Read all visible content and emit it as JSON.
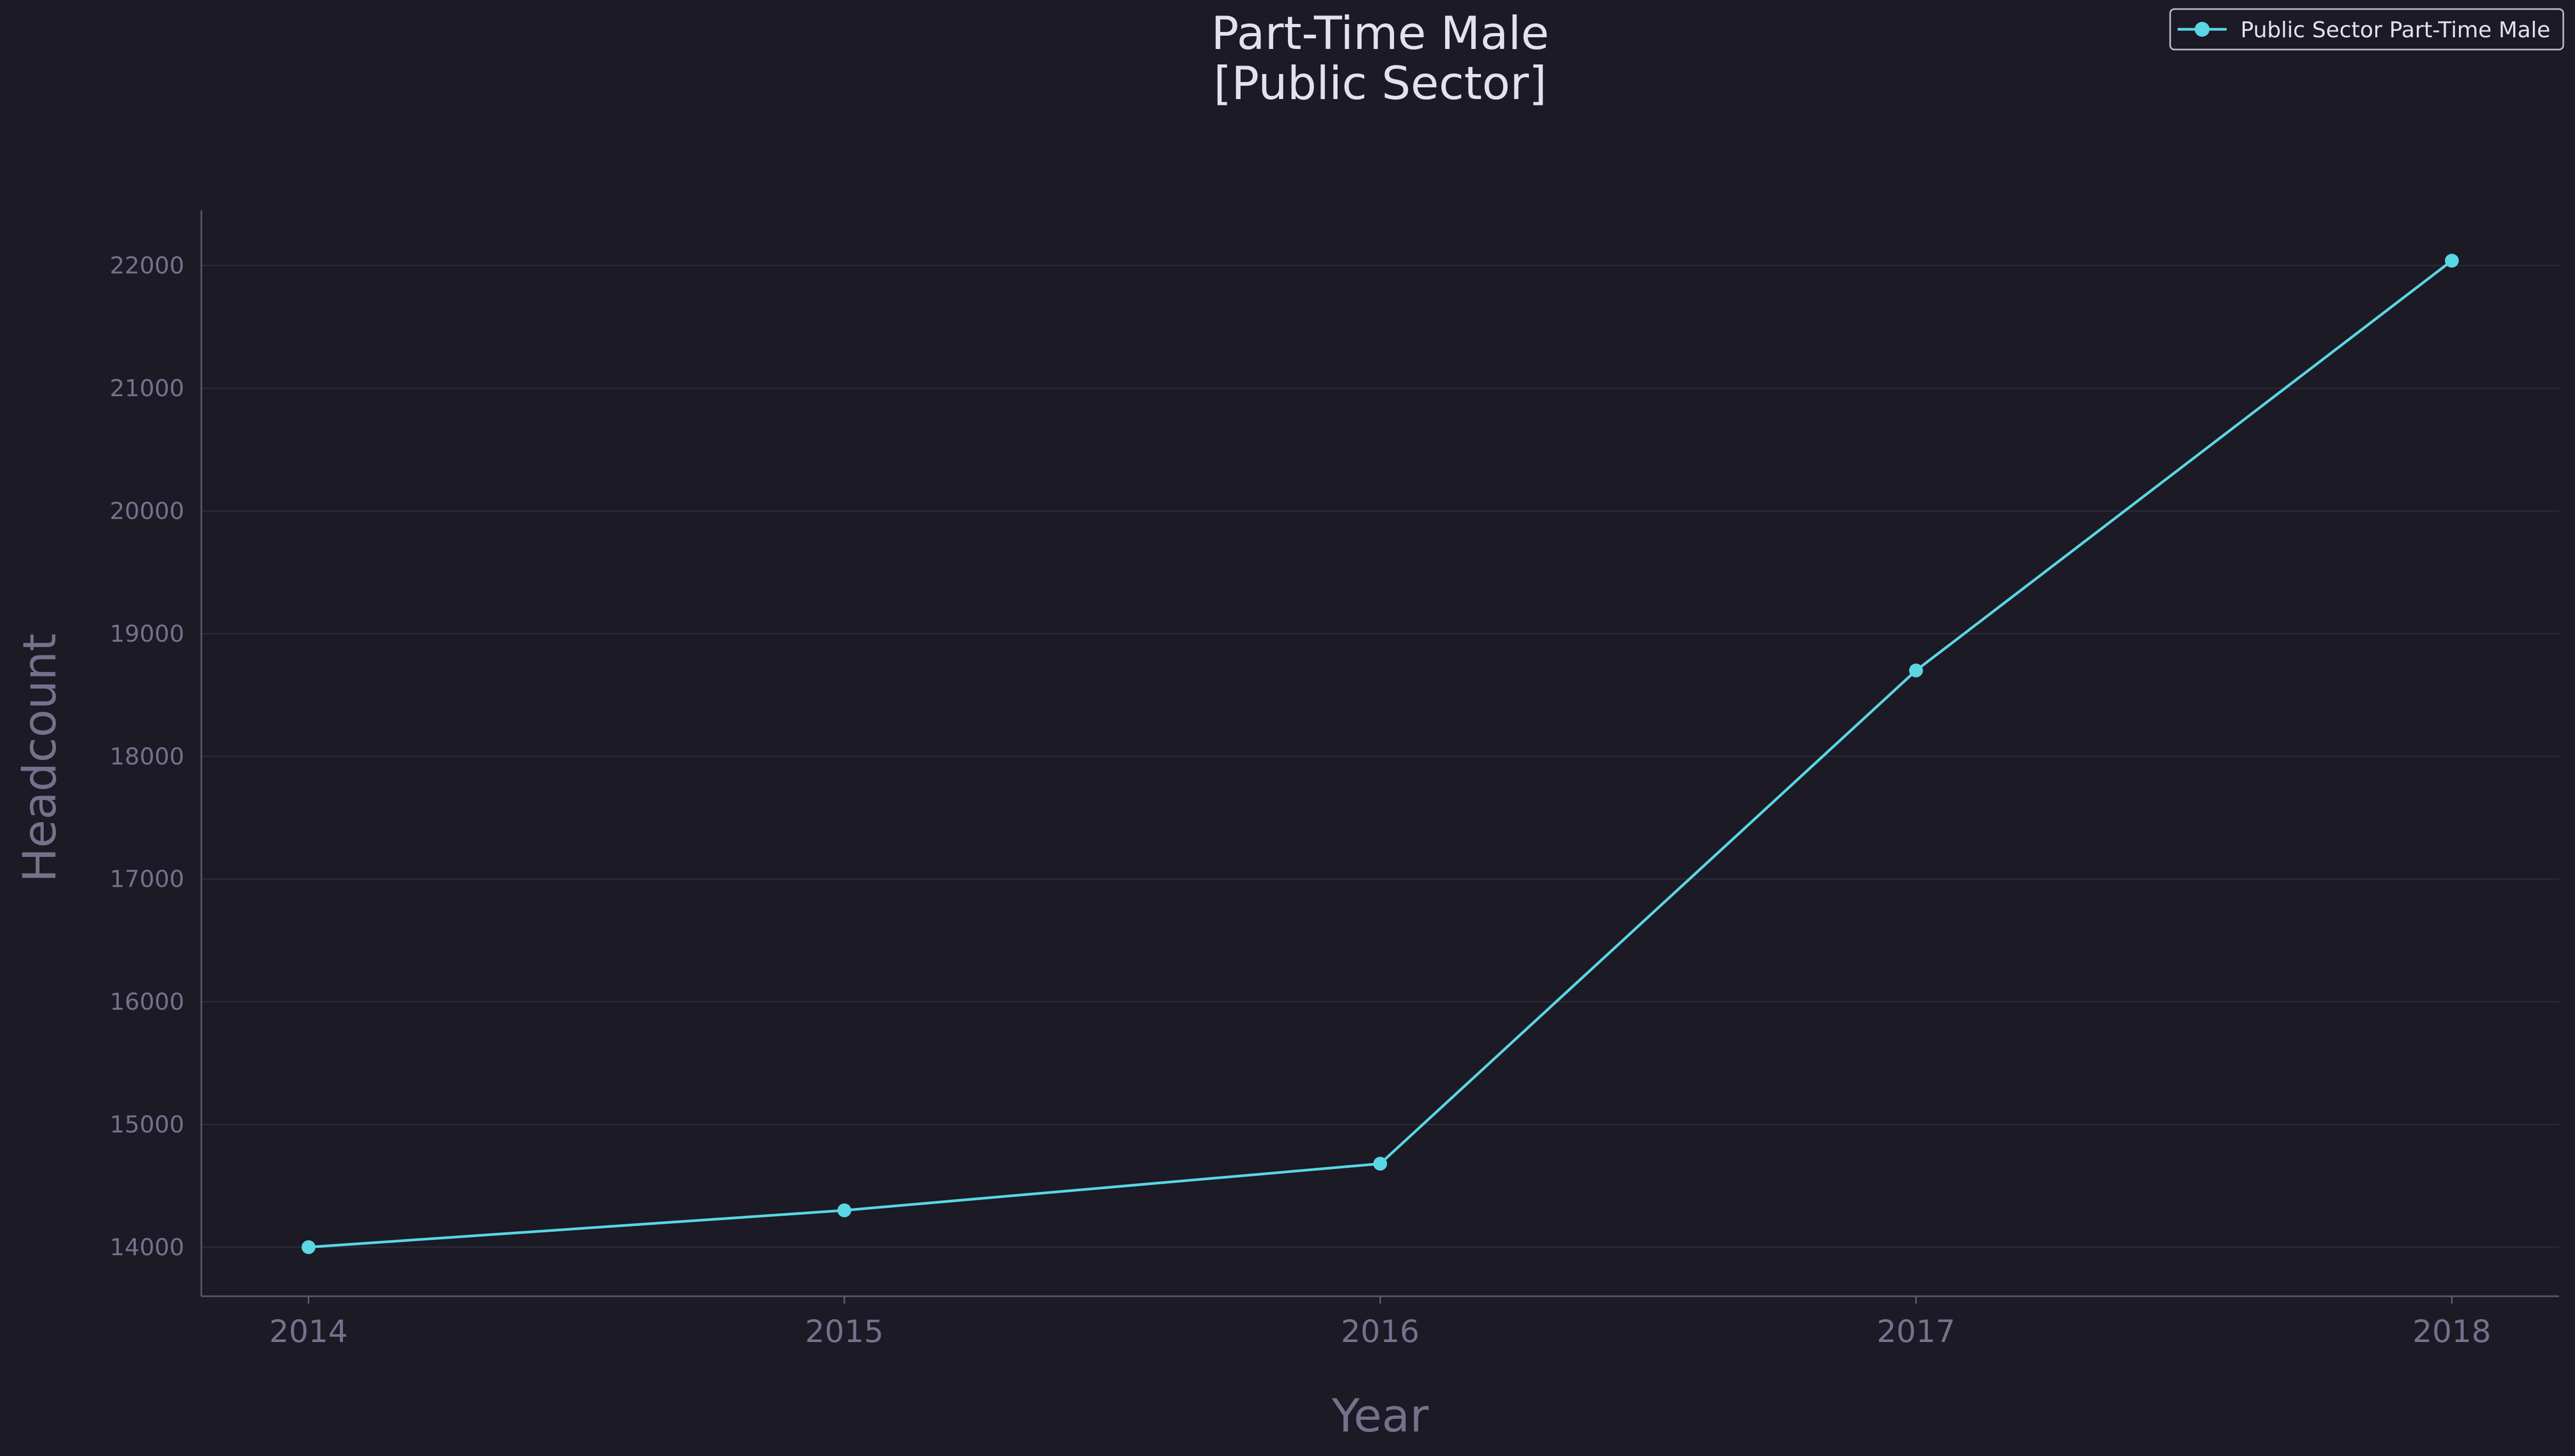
{
  "colors": {
    "background": "#1b1a25",
    "series": "#5ad6e4",
    "grid": "#2a2838",
    "axis": "#5c5870",
    "tick_text": "#77708c",
    "title_text": "#e4e1ee",
    "legend_border": "#bdb9cc"
  },
  "chart_data": {
    "type": "line",
    "title_lines": [
      "Part-Time Male",
      "[Public Sector]"
    ],
    "xlabel": "Year",
    "ylabel": "Headcount",
    "x": [
      2014,
      2015,
      2016,
      2017,
      2018
    ],
    "series": [
      {
        "name": "Public Sector Part-Time Male",
        "values": [
          14000,
          14300,
          14680,
          18700,
          22040
        ],
        "marker": "circle"
      }
    ],
    "xlim": [
      2013.8,
      2018.2
    ],
    "ylim": [
      13600,
      22450
    ],
    "yticks": [
      14000,
      15000,
      16000,
      17000,
      18000,
      19000,
      20000,
      21000,
      22000
    ],
    "xticks": [
      2014,
      2015,
      2016,
      2017,
      2018
    ],
    "grid": "horizontal",
    "legend_position": "top-right"
  }
}
